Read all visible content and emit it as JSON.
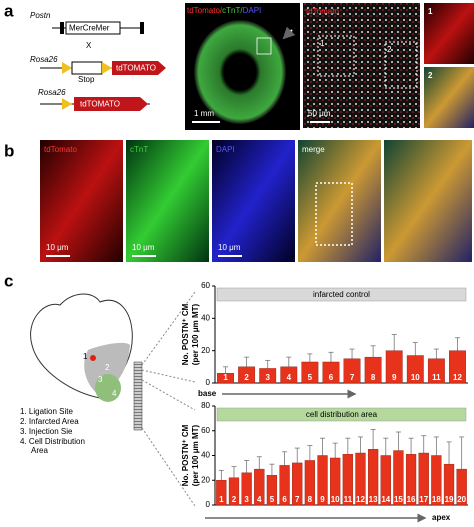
{
  "figure": {
    "panel_labels": [
      "a",
      "b",
      "c"
    ],
    "construct": {
      "postn": "Postn",
      "mercremer": "MerCreMer",
      "x": "X",
      "rosa26_a": "Rosa26",
      "stop": "Stop",
      "tdtomato_a": "tdTOMATO",
      "rosa26_b": "Rosa26",
      "tdtomato_b": "tdTOMATO"
    },
    "heart_image": {
      "stains": [
        "tdTomato/",
        "cTnT/",
        "DAPI"
      ],
      "scale": "1 mm"
    },
    "zoom_image": {
      "stain": "tdTomato",
      "scale": "50 μm",
      "boxes": [
        "1",
        "2"
      ]
    },
    "insets": [
      "1",
      "2"
    ],
    "panel_b": {
      "labels": [
        "tdTomato",
        "cTnT",
        "DAPI",
        "merge"
      ],
      "scales": [
        "10 μm",
        "10 μm",
        "10 μm"
      ]
    },
    "heart_diagram": {
      "markers": [
        "1",
        "2",
        "3",
        "4"
      ],
      "legend": [
        "1.  Ligation Site",
        "2.  Infarcted Area",
        "3.  Injection Sie",
        "4.  Cell Distribution",
        "Area"
      ]
    }
  },
  "chart_data": [
    {
      "type": "bar",
      "title": "infarcted control",
      "banner_color": "#d9d9d9",
      "color": "#e8331c",
      "ylabel": [
        "No. POSTN⁺ CM",
        "(per 100 μm MT)"
      ],
      "xlabel": "base",
      "categories": [
        "1",
        "2",
        "3",
        "4",
        "5",
        "6",
        "7",
        "8",
        "9",
        "10",
        "11",
        "12"
      ],
      "values": [
        6,
        10,
        9,
        10,
        13,
        13,
        15,
        16,
        20,
        17,
        15,
        20
      ],
      "errors": [
        4,
        6,
        5,
        6,
        5,
        6,
        6,
        7,
        10,
        8,
        6,
        8
      ],
      "ylim": [
        0,
        60
      ],
      "yticks": [
        0,
        20,
        40,
        60
      ]
    },
    {
      "type": "bar",
      "title": "cell distribution area",
      "banner_color": "#b5d99c",
      "color": "#e8331c",
      "ylabel": [
        "No. POSTN⁺ CM",
        "(per 100 μm MT)"
      ],
      "xlabel": "apex",
      "categories": [
        "1",
        "2",
        "3",
        "4",
        "5",
        "6",
        "7",
        "8",
        "9",
        "10",
        "11",
        "12",
        "13",
        "14",
        "15",
        "16",
        "17",
        "18",
        "19",
        "20"
      ],
      "values": [
        20,
        22,
        26,
        29,
        24,
        32,
        34,
        36,
        40,
        38,
        41,
        42,
        45,
        40,
        44,
        41,
        42,
        40,
        33,
        29
      ],
      "errors": [
        8,
        9,
        10,
        10,
        9,
        11,
        12,
        12,
        14,
        12,
        13,
        13,
        16,
        14,
        15,
        13,
        14,
        15,
        18,
        26
      ],
      "ylim": [
        0,
        80
      ],
      "yticks": [
        0,
        20,
        40,
        60,
        80
      ]
    }
  ]
}
